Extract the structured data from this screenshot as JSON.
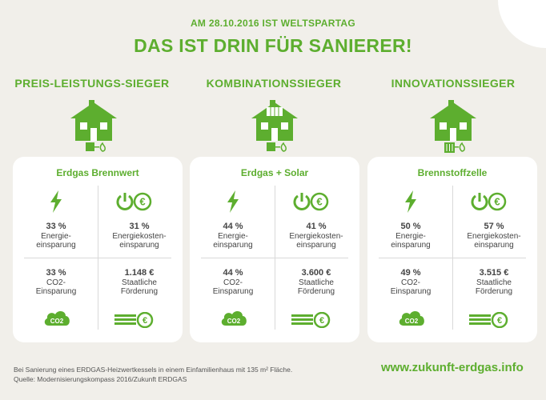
{
  "header": {
    "date_line": "AM 28.10.2016 IST WELTSPARTAG",
    "headline": "DAS IST DRIN FÜR SANIERER!"
  },
  "columns": [
    {
      "category": "PREIS-LEISTUNGS-SIEGER",
      "card_title": "Erdgas Brennwert",
      "energy_pct": "33 %",
      "energy_label_1": "Energie-",
      "energy_label_2": "einsparung",
      "cost_pct": "31 %",
      "cost_label_1": "Energiekosten-",
      "cost_label_2": "einsparung",
      "co2_pct": "33 %",
      "co2_label_1": "CO2-",
      "co2_label_2": "Einsparung",
      "funding": "1.148 €",
      "funding_label_1": "Staatliche",
      "funding_label_2": "Förderung"
    },
    {
      "category": "KOMBINATIONSSIEGER",
      "card_title": "Erdgas + Solar",
      "energy_pct": "44 %",
      "energy_label_1": "Energie-",
      "energy_label_2": "einsparung",
      "cost_pct": "41 %",
      "cost_label_1": "Energiekosten-",
      "cost_label_2": "einsparung",
      "co2_pct": "44 %",
      "co2_label_1": "CO2-",
      "co2_label_2": "Einsparung",
      "funding": "3.600 €",
      "funding_label_1": "Staatliche",
      "funding_label_2": "Förderung"
    },
    {
      "category": "INNOVATIONSSIEGER",
      "card_title": "Brennstoffzelle",
      "energy_pct": "50 %",
      "energy_label_1": "Energie-",
      "energy_label_2": "einsparung",
      "cost_pct": "57 %",
      "cost_label_1": "Energiekosten-",
      "cost_label_2": "einsparung",
      "co2_pct": "49 %",
      "co2_label_1": "CO2-",
      "co2_label_2": "Einsparung",
      "funding": "3.515 €",
      "funding_label_1": "Staatliche",
      "funding_label_2": "Förderung"
    }
  ],
  "icons": {
    "energy": "lightning-icon",
    "cost": "power-euro-icon",
    "co2": "co2-cloud-icon",
    "co2_text": "CO2",
    "funding": "coins-euro-icon",
    "house": "house-icon"
  },
  "footer": {
    "note": "Bei Sanierung eines ERDGAS-Heizwertkessels in einem Einfamilienhaus mit 135 m² Fläche.",
    "source": "Quelle: Modernisierungskompass 2016/Zukunft ERDGAS",
    "url": "www.zukunft-erdgas.info"
  },
  "colors": {
    "accent": "#5dae2f",
    "background": "#f1efea",
    "card": "#ffffff",
    "text": "#444444"
  }
}
